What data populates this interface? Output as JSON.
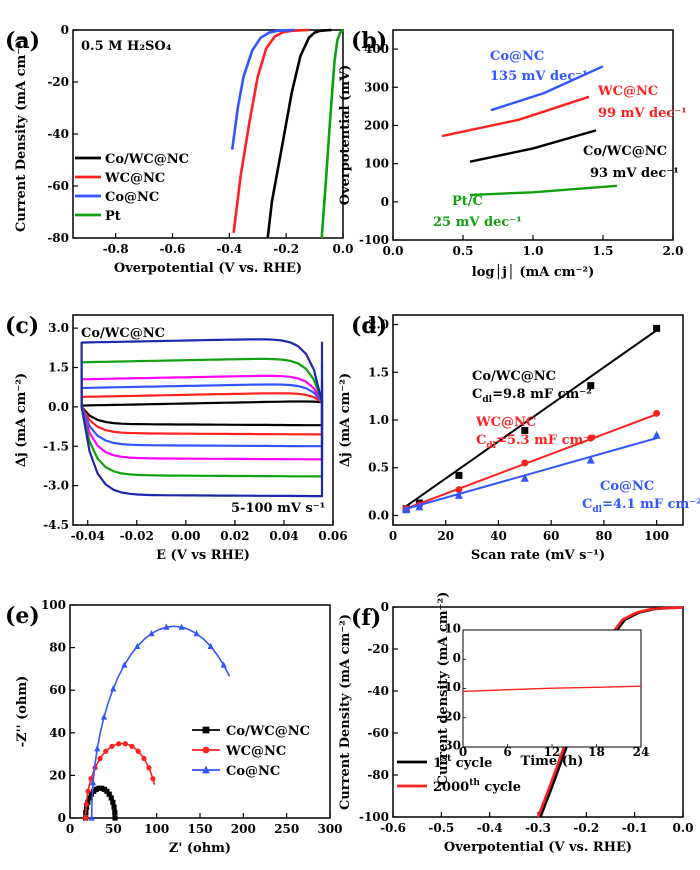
{
  "chart_data": [
    {
      "panel": "(a)",
      "type": "line",
      "annotation": "0.5 M H₂SO₄",
      "xlabel": "Overpotential (V vs. RHE)",
      "ylabel": "Current Density (mA cm⁻²)",
      "xlim": [
        -0.95,
        0.0
      ],
      "ylim": [
        -80,
        0
      ],
      "xticks": [
        "-0.8",
        "-0.6",
        "-0.4",
        "-0.2",
        "0.0"
      ],
      "yticks": [
        "0",
        "-20",
        "-40",
        "-60",
        "-80"
      ],
      "legend_position": "left",
      "series": [
        {
          "name": "Co/WC@NC",
          "color": "#000000",
          "x": [
            -0.265,
            -0.25,
            -0.22,
            -0.18,
            -0.15,
            -0.12,
            -0.1,
            -0.08,
            -0.06,
            -0.04
          ],
          "y": [
            -80,
            -66,
            -48,
            -24,
            -10,
            -3,
            -1,
            -0.3,
            -0.1,
            0
          ]
        },
        {
          "name": "WC@NC",
          "color": "#ff2020",
          "x": [
            -0.385,
            -0.36,
            -0.33,
            -0.3,
            -0.27,
            -0.24,
            -0.21,
            -0.18,
            -0.15,
            -0.12
          ],
          "y": [
            -78,
            -56,
            -36,
            -18,
            -7,
            -2.5,
            -0.8,
            -0.3,
            -0.1,
            0
          ]
        },
        {
          "name": "Co@NC",
          "color": "#3355ff",
          "x": [
            -0.39,
            -0.37,
            -0.35,
            -0.32,
            -0.29,
            -0.26,
            -0.23,
            -0.2,
            -0.17
          ],
          "y": [
            -46,
            -30,
            -18,
            -8,
            -3,
            -1,
            -0.3,
            -0.1,
            0
          ]
        },
        {
          "name": "Pt",
          "color": "#10a010",
          "x": [
            -0.075,
            -0.06,
            -0.045,
            -0.03,
            -0.02,
            -0.01,
            0.0
          ],
          "y": [
            -80,
            -58,
            -34,
            -12,
            -4,
            -1,
            0
          ]
        }
      ]
    },
    {
      "panel": "(b)",
      "type": "line",
      "xlabel": "log│j│ (mA cm⁻²)",
      "ylabel": "Overpotential (mV)",
      "xlim": [
        0.0,
        2.0
      ],
      "ylim": [
        -100,
        450
      ],
      "xticks": [
        "0.0",
        "0.5",
        "1.0",
        "1.5",
        "2.0"
      ],
      "yticks": [
        "-100",
        "0",
        "100",
        "200",
        "300",
        "400"
      ],
      "series": [
        {
          "name": "Co@NC",
          "slope_label": "135 mV dec⁻¹",
          "color": "#3355ff",
          "x": [
            0.7,
            1.08,
            1.5
          ],
          "y": [
            240,
            285,
            355
          ]
        },
        {
          "name": "WC@NC",
          "slope_label": "99 mV dec⁻¹",
          "color": "#ff2020",
          "x": [
            0.35,
            0.9,
            1.4
          ],
          "y": [
            172,
            215,
            275
          ]
        },
        {
          "name": "Co/WC@NC",
          "slope_label": "93 mV dec⁻¹",
          "color": "#000000",
          "x": [
            0.55,
            1.0,
            1.45
          ],
          "y": [
            105,
            140,
            187
          ]
        },
        {
          "name": "Pt/C",
          "slope_label": "25 mV dec⁻¹",
          "color": "#10a010",
          "x": [
            0.55,
            1.0,
            1.6
          ],
          "y": [
            18,
            25,
            42
          ]
        }
      ]
    },
    {
      "panel": "(c)",
      "type": "line",
      "annotation": "Co/WC@NC",
      "range_label": "5-100 mV s⁻¹",
      "xlabel": "E (V vs RHE)",
      "ylabel": "Δj (mA cm⁻²)",
      "xlim": [
        -0.046,
        0.06
      ],
      "ylim": [
        -4.5,
        3.5
      ],
      "xticks": [
        "-0.04",
        "-0.02",
        "0.00",
        "0.02",
        "0.04",
        "0.06"
      ],
      "yticks": [
        "3.0",
        "1.5",
        "0.0",
        "-1.5",
        "-3.0",
        "-4.5"
      ],
      "series": [
        {
          "color": "#000000",
          "upper": 0.05,
          "lower": -0.65
        },
        {
          "color": "#ff2020",
          "upper": 0.38,
          "lower": -1.0
        },
        {
          "color": "#3355ff",
          "upper": 0.72,
          "lower": -1.45
        },
        {
          "color": "#ff00ff",
          "upper": 1.05,
          "lower": -1.95
        },
        {
          "color": "#10a010",
          "upper": 1.7,
          "lower": -2.6
        },
        {
          "color": "#1a2aa8",
          "upper": 2.45,
          "lower": -3.35
        }
      ]
    },
    {
      "panel": "(d)",
      "type": "scatter",
      "xlabel": "Scan rate (mV s⁻¹)",
      "ylabel": "Δj (mA cm⁻²)",
      "xlim": [
        0,
        110
      ],
      "ylim": [
        -0.1,
        2.1
      ],
      "xticks": [
        "0",
        "20",
        "40",
        "60",
        "80",
        "100"
      ],
      "yticks": [
        "0.0",
        "0.5",
        "1.0",
        "1.5",
        "2.0"
      ],
      "series": [
        {
          "name": "Co/WC@NC",
          "cdl_label": "=9.8 mF cm⁻²",
          "color": "#000000",
          "marker": "square",
          "x": [
            5,
            10,
            25,
            50,
            75,
            100
          ],
          "y": [
            0.07,
            0.13,
            0.42,
            0.89,
            1.36,
            1.96
          ],
          "fit": [
            0.0,
            1.94
          ]
        },
        {
          "name": "WC@NC",
          "cdl_label": "=5.3 mF cm⁻²",
          "color": "#ff2020",
          "marker": "circle",
          "x": [
            5,
            10,
            25,
            50,
            75,
            100
          ],
          "y": [
            0.07,
            0.11,
            0.27,
            0.55,
            0.81,
            1.07
          ],
          "fit": [
            0.02,
            1.06
          ]
        },
        {
          "name": "Co@NC",
          "cdl_label": "=4.1 mF cm⁻²",
          "color": "#3355ff",
          "marker": "triangle",
          "x": [
            5,
            10,
            25,
            50,
            75,
            100
          ],
          "y": [
            0.06,
            0.09,
            0.21,
            0.39,
            0.58,
            0.84
          ],
          "fit": [
            0.03,
            0.81
          ]
        }
      ]
    },
    {
      "panel": "(e)",
      "type": "line",
      "xlabel": "Z' (ohm)",
      "ylabel": "-Z'' (ohm)",
      "xlim": [
        0,
        300
      ],
      "ylim": [
        0,
        100
      ],
      "xticks": [
        "0",
        "50",
        "100",
        "150",
        "200",
        "250",
        "300"
      ],
      "yticks": [
        "0",
        "20",
        "40",
        "60",
        "80",
        "100"
      ],
      "legend_position": "right",
      "series": [
        {
          "name": "Co/WC@NC",
          "color": "#000000",
          "marker": "square",
          "center": 35,
          "r": 17,
          "start": 18,
          "end": 52,
          "ymax": 14
        },
        {
          "name": "WC@NC",
          "color": "#ff2020",
          "marker": "circle",
          "center": 60,
          "r": 42,
          "start": 13,
          "end": 98,
          "ymax": 35,
          "ystop": 10
        },
        {
          "name": "Co@NC",
          "color": "#3355ff",
          "marker": "triangle",
          "center": 120,
          "r": 95,
          "start": 20,
          "end": 194,
          "ymax": 90,
          "ystop": 62
        }
      ]
    },
    {
      "panel": "(f)",
      "type": "line",
      "xlabel": "Overpotential (V vs. RHE)",
      "ylabel": "Current Density (mA cm⁻²)",
      "xlim": [
        -0.6,
        0.0
      ],
      "ylim": [
        -100,
        0
      ],
      "xticks": [
        "-0.6",
        "-0.5",
        "-0.4",
        "-0.3",
        "-0.2",
        "-0.1",
        "0.0"
      ],
      "yticks": [
        "0",
        "-20",
        "-40",
        "-60",
        "-80",
        "-100"
      ],
      "legend_position": "bottom-left",
      "series": [
        {
          "name": "1st cycle",
          "name_base": "1",
          "name_sup": "st",
          "name_rest": " cycle",
          "color": "#000000",
          "x": [
            -0.295,
            -0.27,
            -0.24,
            -0.21,
            -0.18,
            -0.15,
            -0.12,
            -0.09,
            -0.06,
            -0.03,
            0.0
          ],
          "y": [
            -100,
            -85,
            -66,
            -47,
            -29,
            -15,
            -6,
            -2.5,
            -1,
            -0.5,
            -0.3
          ]
        },
        {
          "name": "2000th cycle",
          "name_base": "2000",
          "name_sup": "th",
          "name_rest": " cycle",
          "color": "#ff2020",
          "x": [
            -0.3,
            -0.275,
            -0.245,
            -0.215,
            -0.185,
            -0.155,
            -0.125,
            -0.095,
            -0.065,
            -0.035,
            0.0
          ],
          "y": [
            -100,
            -85,
            -66,
            -47,
            -29,
            -15,
            -6,
            -2.5,
            -1,
            -0.5,
            -0.3
          ]
        }
      ],
      "inset": {
        "xlabel": "Time (h)",
        "ylabel": "Current density (mA cm⁻²)",
        "xlim": [
          0,
          24
        ],
        "ylim": [
          -30,
          10
        ],
        "xticks": [
          "0",
          "6",
          "12",
          "18",
          "24"
        ],
        "yticks": [
          "10",
          "0",
          "-10",
          "-20",
          "-30"
        ],
        "series": [
          {
            "color": "#ff2020",
            "x": [
              0,
              6,
              12,
              18,
              24
            ],
            "y": [
              -11,
              -10.4,
              -9.9,
              -9.6,
              -9.2
            ]
          }
        ]
      }
    }
  ]
}
